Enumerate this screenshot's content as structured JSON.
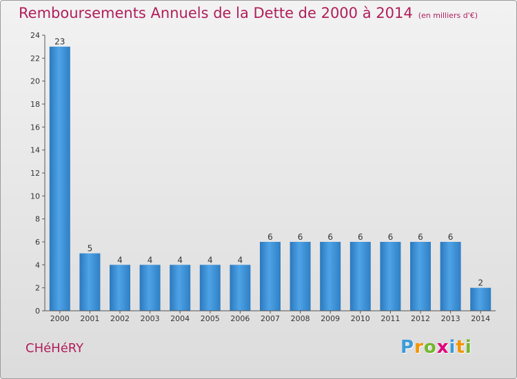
{
  "title": "Remboursements Annuels de la Dette de 2000 à 2014",
  "subtitle": "(en milliers d'€)",
  "commune": "CHéHéRY",
  "logo": {
    "letters": [
      "P",
      "r",
      "o",
      "x",
      "i",
      "t",
      "i"
    ],
    "colors": [
      "#3a9bd9",
      "#f29400",
      "#74b72e",
      "#e2007a",
      "#3a9bd9",
      "#f29400",
      "#74b72e"
    ]
  },
  "chart_data": {
    "type": "bar",
    "categories": [
      "2000",
      "2001",
      "2002",
      "2003",
      "2004",
      "2005",
      "2006",
      "2007",
      "2008",
      "2009",
      "2010",
      "2011",
      "2012",
      "2013",
      "2014"
    ],
    "values": [
      23,
      5,
      4,
      4,
      4,
      4,
      4,
      6,
      6,
      6,
      6,
      6,
      6,
      6,
      2
    ],
    "data_labels": [
      "23",
      "5",
      "4",
      "4",
      "4",
      "4",
      "4",
      "6",
      "6",
      "6",
      "6",
      "6",
      "6",
      "6",
      "2"
    ],
    "ylim": [
      0,
      24
    ],
    "yticks": [
      0,
      2,
      4,
      6,
      8,
      10,
      12,
      14,
      16,
      18,
      20,
      22,
      24
    ],
    "bar_color": "#3d8fd6",
    "grid": false,
    "legend": "none"
  }
}
